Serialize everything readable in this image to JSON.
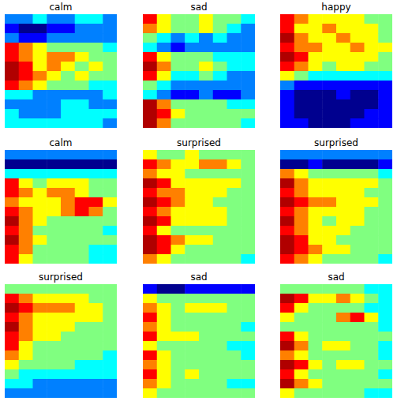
{
  "chart_data": [
    {
      "type": "heatmap",
      "title": "calm",
      "tick_labels": false,
      "cells": [
        [
          3,
          3,
          4,
          3,
          3,
          4,
          4,
          3
        ],
        [
          2,
          1,
          1,
          2,
          2,
          3,
          3,
          3
        ],
        [
          3,
          2,
          2,
          3,
          3,
          3,
          3,
          3
        ],
        [
          8,
          7,
          6,
          5,
          5,
          5,
          5,
          4
        ],
        [
          8,
          7,
          6,
          7,
          7,
          6,
          5,
          5
        ],
        [
          9,
          8,
          6,
          7,
          6,
          5,
          6,
          5
        ],
        [
          9,
          8,
          7,
          6,
          5,
          6,
          5,
          5
        ],
        [
          8,
          7,
          6,
          5,
          5,
          5,
          4,
          4
        ],
        [
          4,
          4,
          3,
          3,
          3,
          3,
          3,
          4
        ],
        [
          3,
          3,
          3,
          3,
          4,
          4,
          3,
          3
        ],
        [
          4,
          3,
          3,
          3,
          4,
          4,
          4,
          4
        ],
        [
          4,
          4,
          4,
          4,
          4,
          4,
          4,
          3
        ]
      ]
    },
    {
      "type": "heatmap",
      "title": "sad",
      "tick_labels": false,
      "cells": [
        [
          8,
          6,
          5,
          5,
          6,
          5,
          5,
          4
        ],
        [
          7,
          6,
          5,
          5,
          6,
          5,
          4,
          3
        ],
        [
          5,
          4,
          3,
          4,
          3,
          4,
          3,
          3
        ],
        [
          4,
          3,
          2,
          3,
          3,
          3,
          3,
          3
        ],
        [
          8,
          6,
          5,
          5,
          5,
          4,
          4,
          4
        ],
        [
          9,
          7,
          5,
          5,
          6,
          5,
          4,
          4
        ],
        [
          8,
          6,
          4,
          4,
          5,
          4,
          3,
          3
        ],
        [
          5,
          4,
          3,
          3,
          3,
          3,
          3,
          3
        ],
        [
          4,
          3,
          2,
          2,
          3,
          2,
          2,
          3
        ],
        [
          9,
          7,
          5,
          5,
          5,
          5,
          4,
          4
        ],
        [
          9,
          8,
          6,
          5,
          5,
          5,
          5,
          5
        ],
        [
          9,
          7,
          5,
          5,
          5,
          5,
          5,
          4
        ]
      ]
    },
    {
      "type": "heatmap",
      "title": "happy",
      "tick_labels": false,
      "cells": [
        [
          8,
          7,
          6,
          6,
          6,
          6,
          5,
          5
        ],
        [
          8,
          6,
          6,
          7,
          6,
          6,
          6,
          5
        ],
        [
          9,
          7,
          6,
          6,
          7,
          6,
          6,
          5
        ],
        [
          8,
          7,
          7,
          6,
          6,
          7,
          6,
          6
        ],
        [
          9,
          8,
          6,
          6,
          6,
          6,
          6,
          5
        ],
        [
          8,
          7,
          6,
          5,
          6,
          6,
          5,
          5
        ],
        [
          6,
          5,
          4,
          4,
          4,
          4,
          4,
          4
        ],
        [
          3,
          2,
          2,
          2,
          2,
          2,
          2,
          2
        ],
        [
          2,
          1,
          1,
          1,
          2,
          1,
          1,
          2
        ],
        [
          2,
          1,
          1,
          1,
          1,
          1,
          1,
          2
        ],
        [
          2,
          1,
          1,
          1,
          1,
          1,
          2,
          2
        ],
        [
          2,
          2,
          1,
          1,
          1,
          2,
          2,
          2
        ]
      ]
    },
    {
      "type": "heatmap",
      "title": "calm",
      "tick_labels": false,
      "cells": [
        [
          3,
          3,
          3,
          3,
          3,
          3,
          3,
          3
        ],
        [
          1,
          1,
          1,
          1,
          1,
          1,
          1,
          1
        ],
        [
          4,
          4,
          4,
          4,
          4,
          4,
          4,
          4
        ],
        [
          8,
          6,
          5,
          6,
          6,
          6,
          5,
          5
        ],
        [
          8,
          7,
          6,
          7,
          7,
          6,
          5,
          5
        ],
        [
          7,
          6,
          6,
          6,
          7,
          8,
          8,
          6
        ],
        [
          8,
          7,
          6,
          6,
          7,
          8,
          7,
          5
        ],
        [
          9,
          7,
          6,
          5,
          5,
          5,
          5,
          5
        ],
        [
          8,
          7,
          5,
          5,
          5,
          5,
          5,
          4
        ],
        [
          9,
          7,
          6,
          5,
          5,
          5,
          5,
          5
        ],
        [
          8,
          7,
          5,
          5,
          5,
          5,
          4,
          4
        ],
        [
          8,
          6,
          5,
          5,
          5,
          5,
          4,
          4
        ]
      ]
    },
    {
      "type": "heatmap",
      "title": "surprised",
      "tick_labels": false,
      "cells": [
        [
          6,
          5,
          5,
          6,
          5,
          5,
          5,
          5
        ],
        [
          8,
          7,
          6,
          6,
          7,
          7,
          6,
          5
        ],
        [
          7,
          6,
          6,
          5,
          5,
          5,
          5,
          5
        ],
        [
          9,
          8,
          6,
          6,
          6,
          6,
          6,
          5
        ],
        [
          8,
          7,
          7,
          6,
          6,
          6,
          5,
          5
        ],
        [
          9,
          8,
          7,
          6,
          6,
          5,
          5,
          5
        ],
        [
          8,
          7,
          6,
          6,
          6,
          6,
          5,
          5
        ],
        [
          9,
          8,
          6,
          6,
          6,
          6,
          5,
          5
        ],
        [
          8,
          6,
          5,
          5,
          5,
          5,
          5,
          5
        ],
        [
          9,
          8,
          7,
          6,
          6,
          5,
          5,
          5
        ],
        [
          9,
          8,
          6,
          5,
          5,
          5,
          5,
          5
        ],
        [
          7,
          6,
          5,
          5,
          5,
          5,
          5,
          4
        ]
      ]
    },
    {
      "type": "heatmap",
      "title": "surprised",
      "tick_labels": false,
      "cells": [
        [
          3,
          3,
          3,
          3,
          3,
          3,
          3,
          3
        ],
        [
          1,
          1,
          2,
          1,
          1,
          1,
          1,
          2
        ],
        [
          7,
          6,
          5,
          5,
          5,
          5,
          5,
          4
        ],
        [
          9,
          7,
          6,
          6,
          6,
          6,
          6,
          5
        ],
        [
          8,
          7,
          6,
          6,
          6,
          6,
          5,
          5
        ],
        [
          9,
          8,
          7,
          7,
          6,
          6,
          6,
          5
        ],
        [
          8,
          7,
          6,
          6,
          6,
          6,
          5,
          5
        ],
        [
          9,
          7,
          6,
          5,
          6,
          6,
          5,
          5
        ],
        [
          8,
          7,
          6,
          6,
          6,
          5,
          5,
          5
        ],
        [
          9,
          8,
          6,
          6,
          5,
          5,
          5,
          5
        ],
        [
          9,
          8,
          7,
          6,
          6,
          5,
          5,
          5
        ],
        [
          8,
          7,
          6,
          5,
          5,
          5,
          5,
          4
        ]
      ]
    },
    {
      "type": "heatmap",
      "title": "surprised",
      "tick_labels": false,
      "cells": [
        [
          5,
          5,
          5,
          5,
          5,
          5,
          5,
          5
        ],
        [
          8,
          7,
          6,
          6,
          6,
          6,
          5,
          5
        ],
        [
          9,
          8,
          7,
          7,
          7,
          6,
          6,
          5
        ],
        [
          8,
          7,
          6,
          6,
          6,
          6,
          6,
          5
        ],
        [
          9,
          7,
          6,
          6,
          6,
          5,
          5,
          5
        ],
        [
          8,
          7,
          6,
          6,
          5,
          5,
          5,
          5
        ],
        [
          8,
          6,
          5,
          5,
          5,
          5,
          5,
          5
        ],
        [
          7,
          6,
          5,
          5,
          5,
          5,
          5,
          4
        ],
        [
          6,
          5,
          5,
          5,
          5,
          4,
          4,
          4
        ],
        [
          5,
          4,
          4,
          4,
          4,
          4,
          4,
          4
        ],
        [
          4,
          4,
          3,
          3,
          3,
          3,
          3,
          3
        ],
        [
          3,
          3,
          3,
          3,
          3,
          3,
          3,
          3
        ]
      ]
    },
    {
      "type": "heatmap",
      "title": "sad",
      "tick_labels": false,
      "cells": [
        [
          2,
          1,
          1,
          2,
          2,
          2,
          2,
          2
        ],
        [
          6,
          5,
          5,
          5,
          5,
          5,
          5,
          5
        ],
        [
          7,
          6,
          5,
          6,
          6,
          6,
          5,
          5
        ],
        [
          8,
          6,
          5,
          5,
          5,
          5,
          5,
          5
        ],
        [
          7,
          6,
          5,
          5,
          5,
          5,
          5,
          4
        ],
        [
          8,
          6,
          6,
          6,
          5,
          5,
          5,
          5
        ],
        [
          6,
          5,
          5,
          5,
          5,
          5,
          4,
          4
        ],
        [
          8,
          6,
          5,
          5,
          5,
          5,
          5,
          4
        ],
        [
          7,
          6,
          5,
          5,
          5,
          5,
          5,
          5
        ],
        [
          8,
          6,
          5,
          6,
          5,
          5,
          5,
          5
        ],
        [
          7,
          6,
          5,
          5,
          5,
          5,
          4,
          4
        ],
        [
          6,
          5,
          5,
          5,
          5,
          5,
          5,
          5
        ]
      ]
    },
    {
      "type": "heatmap",
      "title": "sad",
      "tick_labels": false,
      "cells": [
        [
          5,
          5,
          5,
          5,
          5,
          5,
          4,
          4
        ],
        [
          9,
          8,
          6,
          6,
          7,
          6,
          5,
          4
        ],
        [
          8,
          6,
          5,
          5,
          5,
          5,
          4,
          4
        ],
        [
          6,
          5,
          5,
          5,
          7,
          8,
          6,
          4
        ],
        [
          5,
          5,
          5,
          5,
          5,
          5,
          5,
          4
        ],
        [
          8,
          6,
          5,
          5,
          5,
          5,
          5,
          5
        ],
        [
          9,
          7,
          5,
          6,
          6,
          5,
          5,
          4
        ],
        [
          7,
          6,
          5,
          5,
          5,
          5,
          5,
          4
        ],
        [
          9,
          8,
          6,
          5,
          6,
          6,
          5,
          5
        ],
        [
          8,
          6,
          5,
          5,
          5,
          5,
          5,
          4
        ],
        [
          9,
          7,
          6,
          5,
          5,
          5,
          5,
          5
        ],
        [
          6,
          5,
          5,
          5,
          5,
          5,
          4,
          4
        ]
      ]
    }
  ]
}
